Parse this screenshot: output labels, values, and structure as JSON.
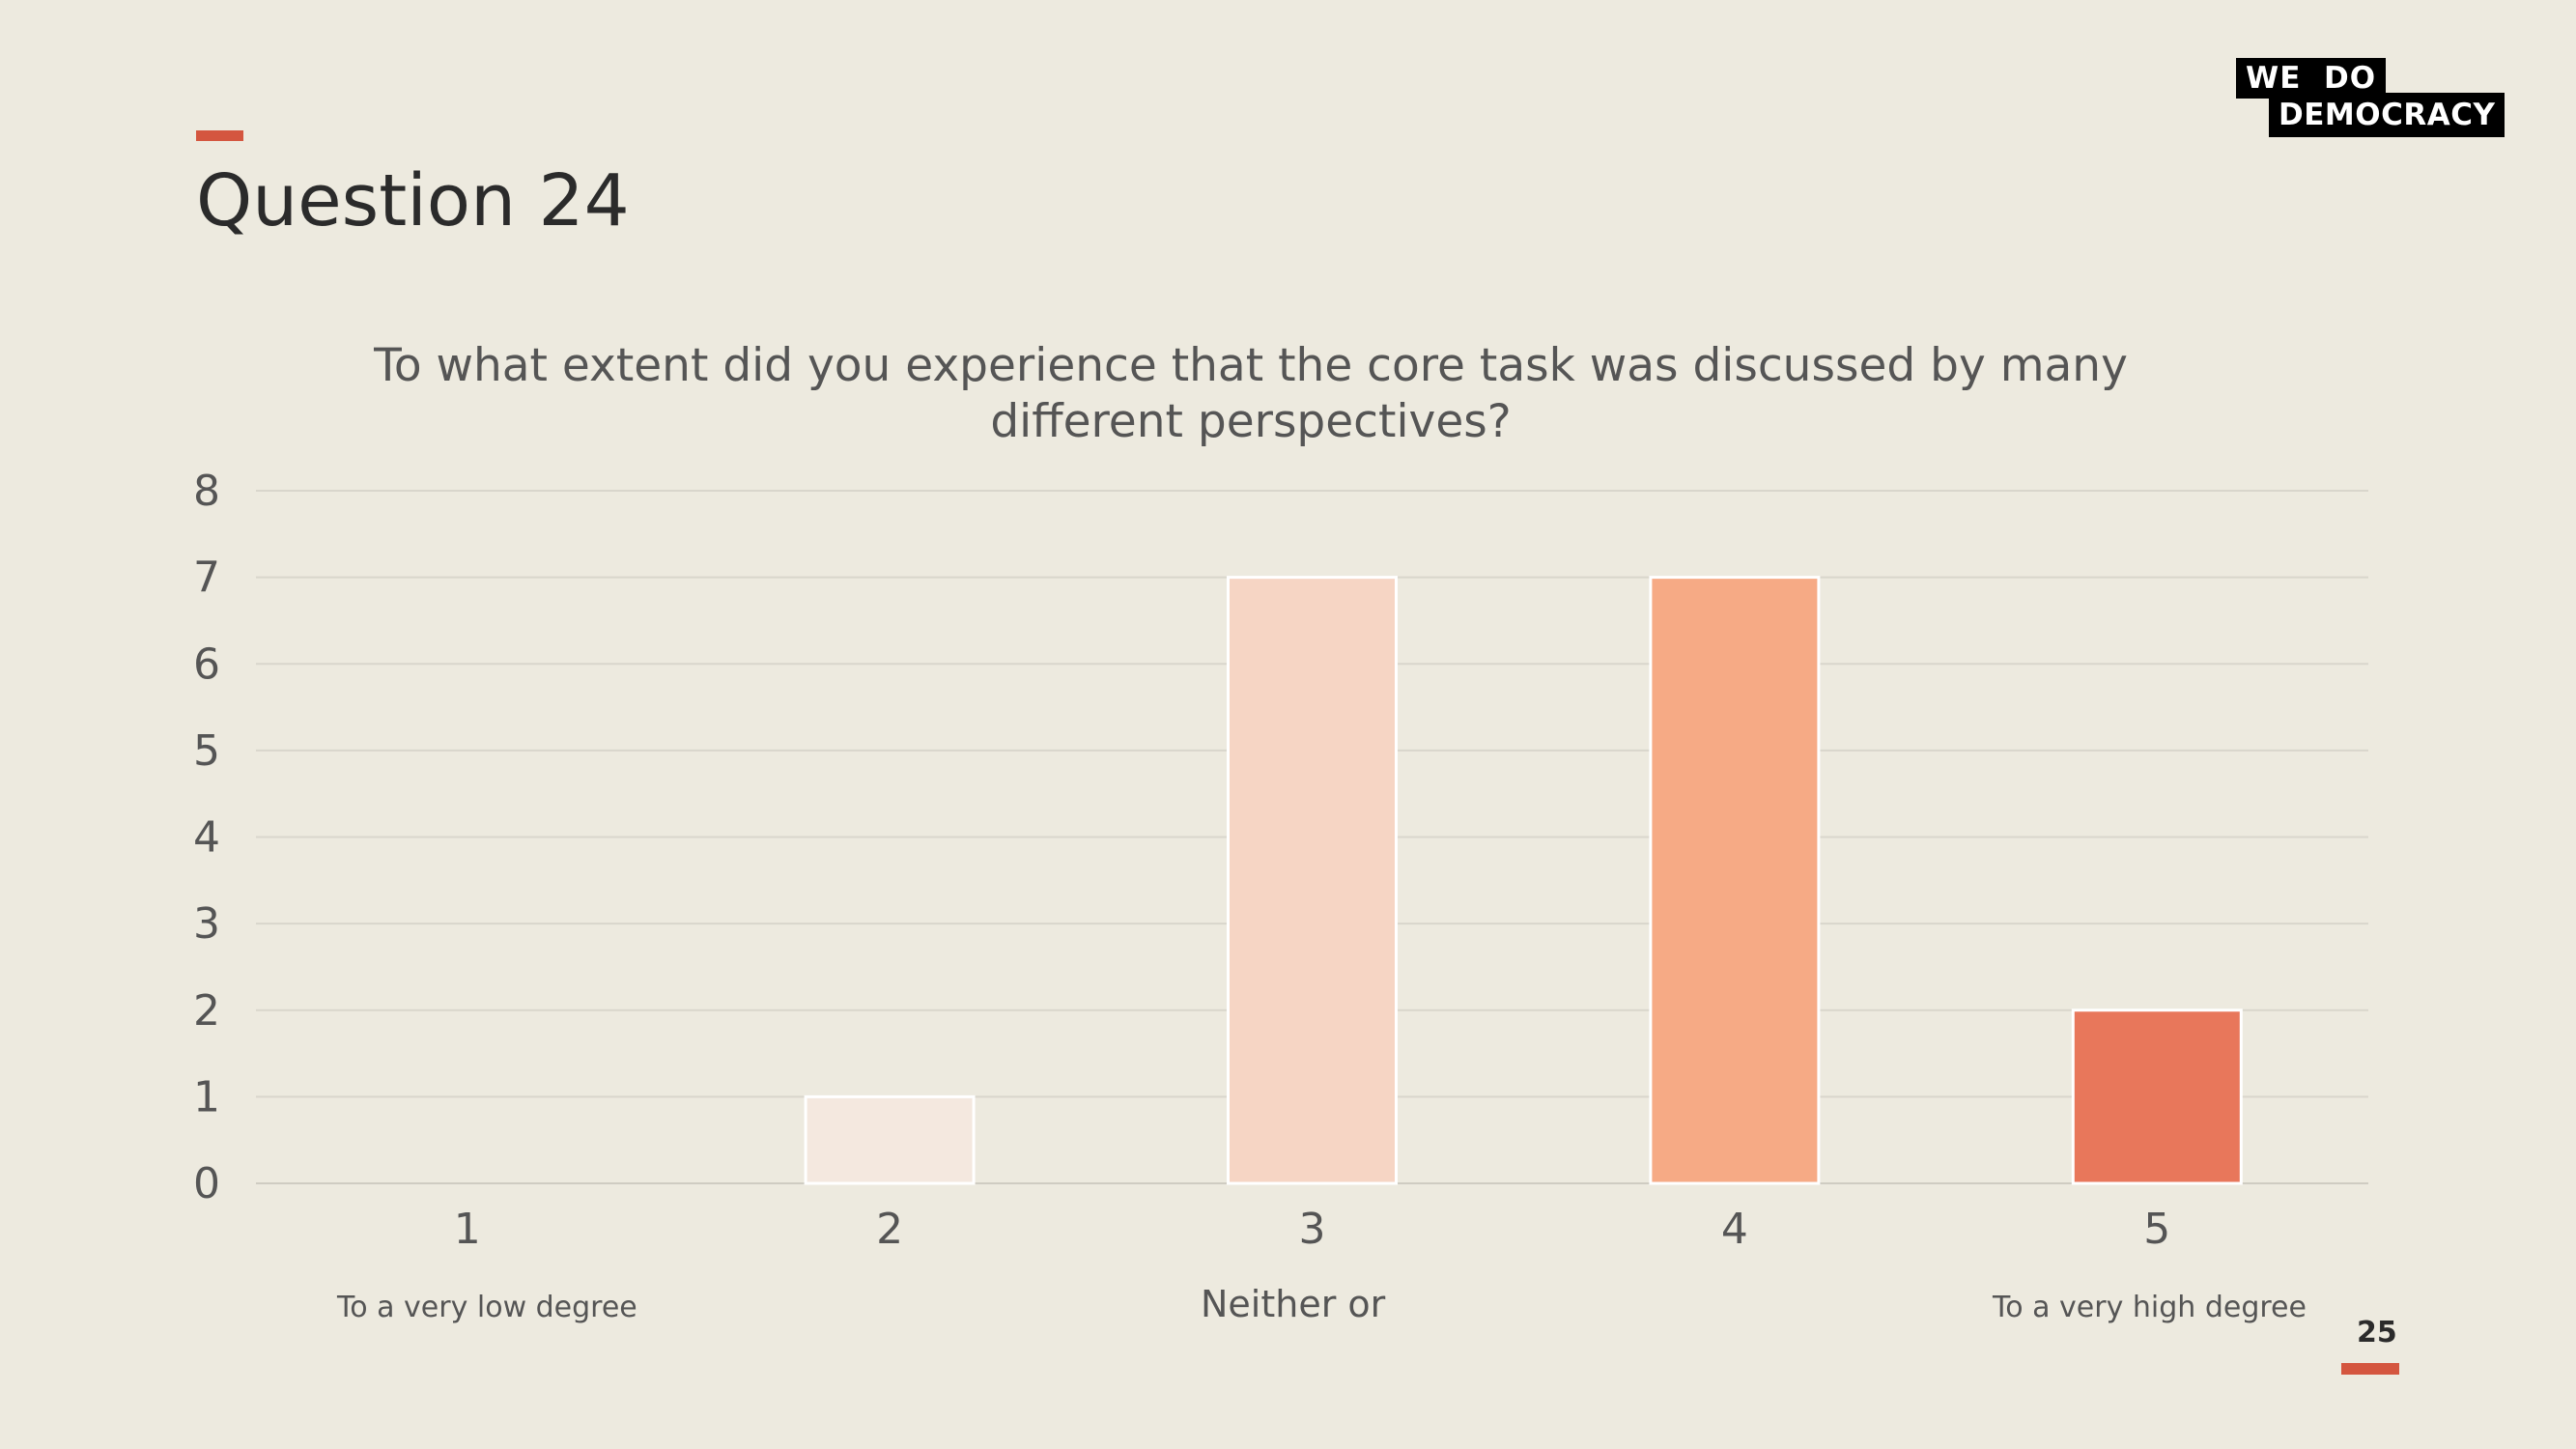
{
  "page": {
    "title": "Question 24",
    "page_number": "25",
    "logo": {
      "line1": "WE  DO",
      "line2": "DEMOCRACY"
    },
    "scale_notes": {
      "low": "To a very low degree",
      "mid": "Neither or",
      "high": "To a very high degree"
    }
  },
  "colors": {
    "background": "#edeadf",
    "accent": "#d4563f",
    "bars": [
      "#f4e8df",
      "#f4e8df",
      "#f6d5c4",
      "#f6aa85",
      "#e8775b"
    ]
  },
  "chart_data": {
    "type": "bar",
    "title": "To what extent did you experience that the core task was discussed by many different perspectives?",
    "categories": [
      "1",
      "2",
      "3",
      "4",
      "5"
    ],
    "values": [
      0,
      1,
      7,
      7,
      2
    ],
    "ylim": [
      0,
      8
    ],
    "yticks": [
      0,
      1,
      2,
      3,
      4,
      5,
      6,
      7,
      8
    ],
    "grid": true,
    "xlabel": "",
    "ylabel": ""
  }
}
